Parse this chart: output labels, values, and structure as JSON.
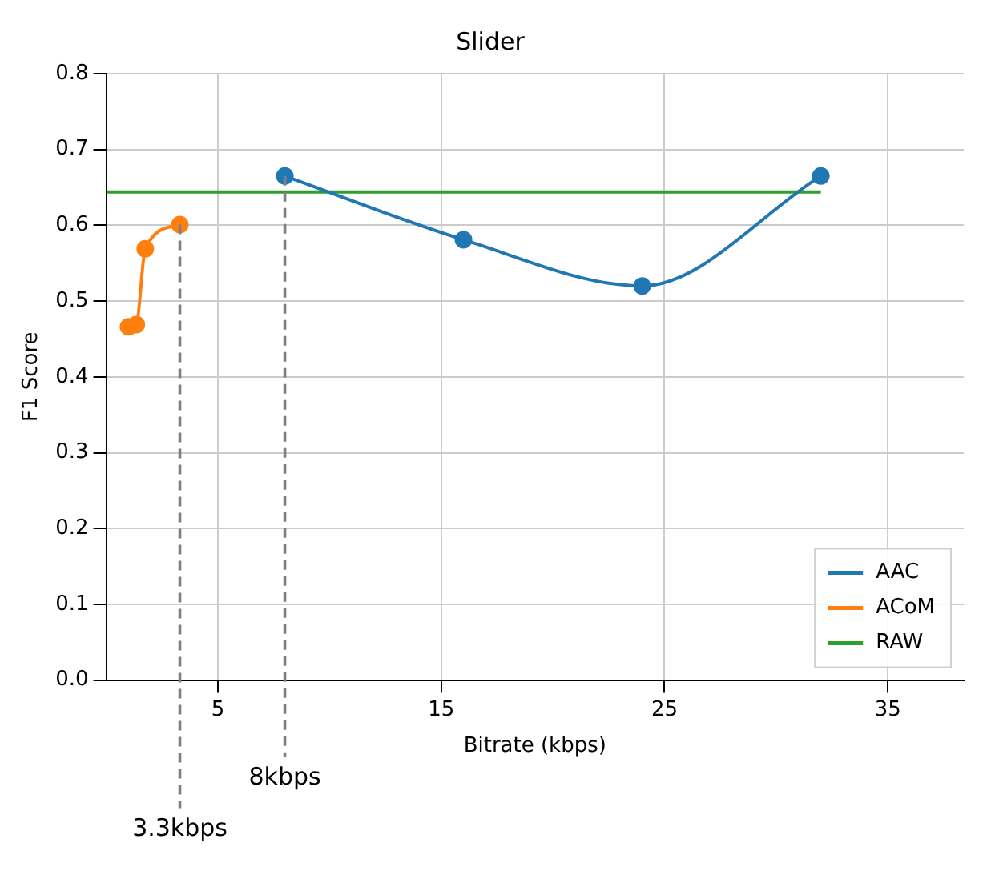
{
  "chart_data": {
    "type": "line",
    "title": "Slider",
    "xlabel": "Bitrate (kbps)",
    "ylabel": "F1 Score",
    "xlim": [
      0,
      38.4
    ],
    "xticks": [
      5,
      15,
      25,
      35
    ],
    "ylim": [
      0,
      0.8
    ],
    "yticks": [
      {
        "value": 0,
        "label": "0.0"
      },
      0.1,
      0.2,
      0.3,
      0.4,
      0.5,
      0.6,
      0.7,
      0.8
    ],
    "series": [
      {
        "name": "AAC",
        "color": "#1f77b4",
        "marker": "circle",
        "x": [
          8,
          16,
          24,
          32
        ],
        "values": [
          0.665,
          0.581,
          0.52,
          0.665
        ]
      },
      {
        "name": "ACoM",
        "color": "#ff7f0e",
        "marker": "circle",
        "x": [
          1,
          1.35,
          1.75,
          3.3
        ],
        "values": [
          0.466,
          0.469,
          0.569,
          0.601
        ]
      },
      {
        "name": "RAW",
        "color": "#2ca02c",
        "marker": "none",
        "x": [
          0,
          32
        ],
        "values": [
          0.644,
          0.644
        ]
      }
    ],
    "ref_lines": [
      {
        "axis": "x",
        "value": 3.3,
        "label": "3.3kbps",
        "color": "#7f7f7f",
        "line_style": "dashed"
      },
      {
        "axis": "x",
        "value": 8,
        "label": "8kbps",
        "color": "#7f7f7f",
        "line_style": "dashed"
      }
    ],
    "grid": true,
    "legend": "bottom right"
  }
}
